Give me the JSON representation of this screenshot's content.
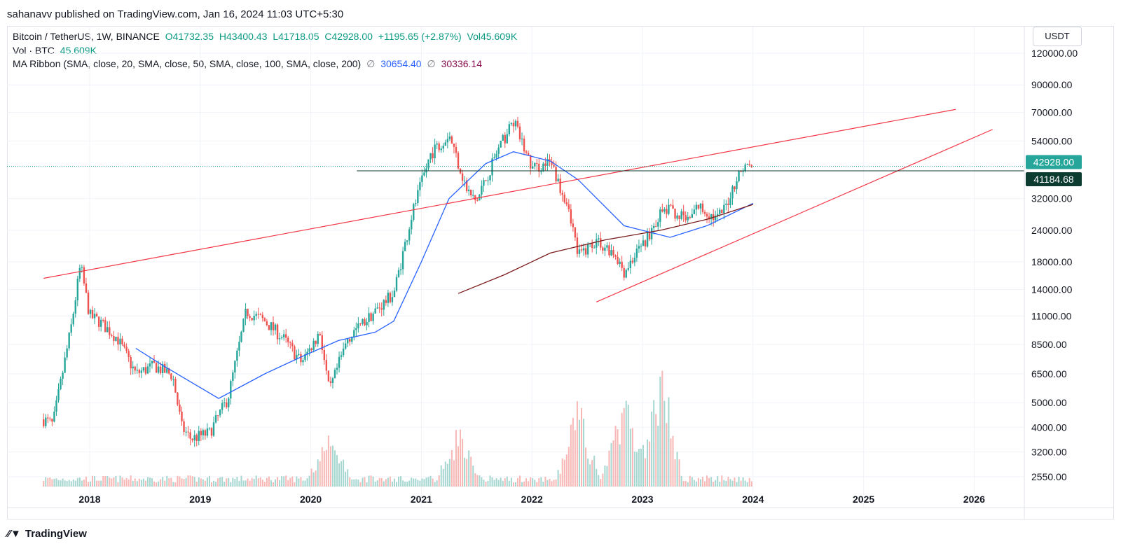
{
  "header": {
    "published": "sahanavv published on TradingView.com, Jan 16, 2024 11:03 UTC+5:30"
  },
  "legend": {
    "symbol": "Bitcoin / TetherUS, 1W, BINANCE",
    "open": "O41732.35",
    "high": "H43400.43",
    "low": "L41718.05",
    "close": "C42928.00",
    "change": "+1195.65 (+2.87%)",
    "volume": "Vol45.609K",
    "vol_label": "Vol · BTC",
    "vol_value": "45.609K",
    "ma_label": "MA Ribbon (SMA, close, 20, SMA, close, 50, SMA, close, 100, SMA, close, 200)",
    "ma_icon": "∅",
    "ma_value1": "30654.40",
    "ma_value2": "30336.14"
  },
  "currency": "USDT",
  "footer": {
    "brand": "TradingView",
    "logo_icon": "tradingview-logo-icon"
  },
  "colors": {
    "up": "#26a69a",
    "down": "#ef5350",
    "ma_fast": "#2962ff",
    "ma_slow": "#7b1c1c",
    "trendline": "#f23645",
    "last_price": "#26a69a",
    "level": "#0c3b30"
  },
  "chart_data": {
    "type": "candlestick",
    "title": "",
    "timeframe": "1W",
    "y_scale": "log",
    "y_ticks": [
      "120000.00",
      "90000.00",
      "70000.00",
      "54000.00",
      "32000.00",
      "24000.00",
      "18000.00",
      "14000.00",
      "11000.00",
      "8500.00",
      "6500.00",
      "5000.00",
      "4000.00",
      "3200.00",
      "2550.00"
    ],
    "x_ticks": [
      "2018",
      "2019",
      "2020",
      "2021",
      "2022",
      "2023",
      "2024",
      "2025",
      "2026"
    ],
    "x_range": [
      "2017-08",
      "2026-08"
    ],
    "last_price_label": "42928.00",
    "level_label": "41184.68",
    "grid": true,
    "approx_close_path": [
      {
        "date": "2017-08",
        "close": 4300
      },
      {
        "date": "2017-09",
        "close": 4100
      },
      {
        "date": "2017-10",
        "close": 6400
      },
      {
        "date": "2017-11",
        "close": 10000
      },
      {
        "date": "2017-12",
        "close": 17500
      },
      {
        "date": "2018-01",
        "close": 11000
      },
      {
        "date": "2018-02",
        "close": 10500
      },
      {
        "date": "2018-04",
        "close": 9000
      },
      {
        "date": "2018-06",
        "close": 6500
      },
      {
        "date": "2018-08",
        "close": 7000
      },
      {
        "date": "2018-10",
        "close": 6400
      },
      {
        "date": "2018-11",
        "close": 4000
      },
      {
        "date": "2018-12",
        "close": 3600
      },
      {
        "date": "2019-02",
        "close": 3800
      },
      {
        "date": "2019-04",
        "close": 5200
      },
      {
        "date": "2019-06",
        "close": 11500
      },
      {
        "date": "2019-08",
        "close": 10500
      },
      {
        "date": "2019-10",
        "close": 9000
      },
      {
        "date": "2019-12",
        "close": 7200
      },
      {
        "date": "2020-02",
        "close": 9500
      },
      {
        "date": "2020-03",
        "close": 5500
      },
      {
        "date": "2020-05",
        "close": 9000
      },
      {
        "date": "2020-08",
        "close": 11500
      },
      {
        "date": "2020-10",
        "close": 13500
      },
      {
        "date": "2020-12",
        "close": 28000
      },
      {
        "date": "2021-02",
        "close": 48000
      },
      {
        "date": "2021-04",
        "close": 58000
      },
      {
        "date": "2021-06",
        "close": 34000
      },
      {
        "date": "2021-07",
        "close": 31000
      },
      {
        "date": "2021-09",
        "close": 47000
      },
      {
        "date": "2021-11",
        "close": 65000
      },
      {
        "date": "2022-01",
        "close": 42000
      },
      {
        "date": "2022-03",
        "close": 44000
      },
      {
        "date": "2022-05",
        "close": 30000
      },
      {
        "date": "2022-06",
        "close": 19000
      },
      {
        "date": "2022-08",
        "close": 22000
      },
      {
        "date": "2022-10",
        "close": 19500
      },
      {
        "date": "2022-11",
        "close": 16500
      },
      {
        "date": "2023-01",
        "close": 21000
      },
      {
        "date": "2023-03",
        "close": 28000
      },
      {
        "date": "2023-04",
        "close": 29000
      },
      {
        "date": "2023-06",
        "close": 26000
      },
      {
        "date": "2023-07",
        "close": 30000
      },
      {
        "date": "2023-09",
        "close": 26500
      },
      {
        "date": "2023-10",
        "close": 29500
      },
      {
        "date": "2023-11",
        "close": 37000
      },
      {
        "date": "2023-12",
        "close": 43000
      },
      {
        "date": "2024-01",
        "close": 42928
      }
    ],
    "ma_fast_path": [
      {
        "date": "2018-06",
        "value": 8200
      },
      {
        "date": "2018-09",
        "value": 7000
      },
      {
        "date": "2019-03",
        "value": 5200
      },
      {
        "date": "2019-08",
        "value": 6500
      },
      {
        "date": "2019-12",
        "value": 7600
      },
      {
        "date": "2020-04",
        "value": 8800
      },
      {
        "date": "2020-08",
        "value": 9500
      },
      {
        "date": "2020-10",
        "value": 10500
      },
      {
        "date": "2021-01",
        "value": 18000
      },
      {
        "date": "2021-04",
        "value": 32000
      },
      {
        "date": "2021-08",
        "value": 44000
      },
      {
        "date": "2021-11",
        "value": 49000
      },
      {
        "date": "2022-03",
        "value": 45000
      },
      {
        "date": "2022-06",
        "value": 38000
      },
      {
        "date": "2022-11",
        "value": 25000
      },
      {
        "date": "2023-04",
        "value": 22500
      },
      {
        "date": "2023-08",
        "value": 25000
      },
      {
        "date": "2024-01",
        "value": 30654
      }
    ],
    "ma_slow_path": [
      {
        "date": "2021-05",
        "value": 13500
      },
      {
        "date": "2021-10",
        "value": 16000
      },
      {
        "date": "2022-03",
        "value": 19500
      },
      {
        "date": "2022-09",
        "value": 22000
      },
      {
        "date": "2023-03",
        "value": 24000
      },
      {
        "date": "2023-08",
        "value": 26500
      },
      {
        "date": "2024-01",
        "value": 30336
      }
    ],
    "trendlines": [
      {
        "from": {
          "date": "2017-08",
          "price": 15500
        },
        "to": {
          "date": "2025-11",
          "price": 72000
        }
      },
      {
        "from": {
          "date": "2022-08",
          "price": 12500
        },
        "to": {
          "date": "2026-03",
          "price": 60000
        }
      }
    ],
    "horizontal_level": {
      "from_date": "2020-06",
      "price": 41184.68
    },
    "volume_spikes": [
      {
        "date": "2020-03",
        "volume": 0.5
      },
      {
        "date": "2021-05",
        "volume": 0.55
      },
      {
        "date": "2022-06",
        "volume": 0.85
      },
      {
        "date": "2022-11",
        "volume": 1.0
      },
      {
        "date": "2023-03",
        "volume": 1.25
      }
    ]
  }
}
